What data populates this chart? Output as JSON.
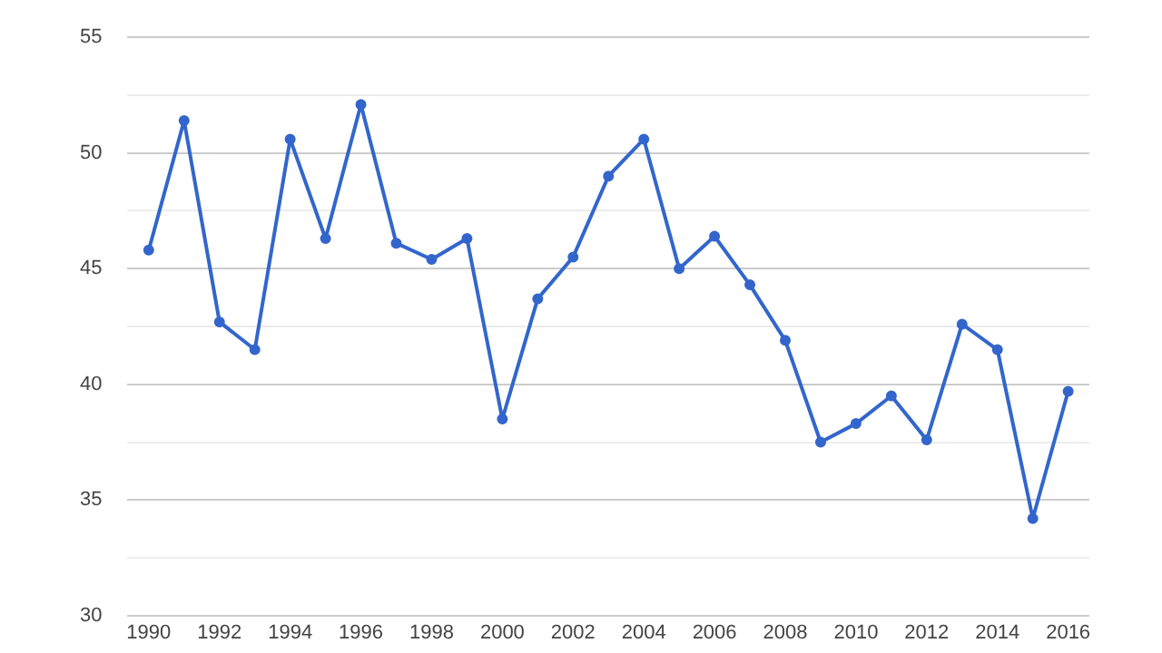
{
  "chart_data": {
    "type": "line",
    "x": [
      1990,
      1991,
      1992,
      1993,
      1994,
      1995,
      1996,
      1997,
      1998,
      1999,
      2000,
      2001,
      2002,
      2003,
      2004,
      2005,
      2006,
      2007,
      2008,
      2009,
      2010,
      2011,
      2012,
      2013,
      2014,
      2015,
      2016
    ],
    "series": [
      {
        "color": "#3366cc",
        "values": [
          45.8,
          51.4,
          42.7,
          41.5,
          50.6,
          46.3,
          52.1,
          46.1,
          45.4,
          46.3,
          38.5,
          43.7,
          45.5,
          49.0,
          50.6,
          45.0,
          46.4,
          44.3,
          41.9,
          37.5,
          38.3,
          39.5,
          37.6,
          42.6,
          41.5,
          34.2,
          39.7
        ]
      }
    ],
    "xlim": [
      1989.4,
      2016.6
    ],
    "xticks": [
      1990,
      1992,
      1994,
      1996,
      1998,
      2000,
      2002,
      2004,
      2006,
      2008,
      2010,
      2012,
      2014,
      2016
    ],
    "ylim": [
      30,
      55
    ],
    "yticks": [
      30,
      {
        "value": 32.5,
        "label": null
      },
      35,
      {
        "value": 37.5,
        "label": null
      },
      40,
      {
        "value": 42.5,
        "label": null
      },
      45,
      {
        "value": 47.5,
        "label": null
      },
      50,
      {
        "value": 52.5,
        "label": null
      },
      55
    ],
    "grid": "y",
    "legend": false,
    "marker": "circle",
    "line_style": "solid"
  }
}
